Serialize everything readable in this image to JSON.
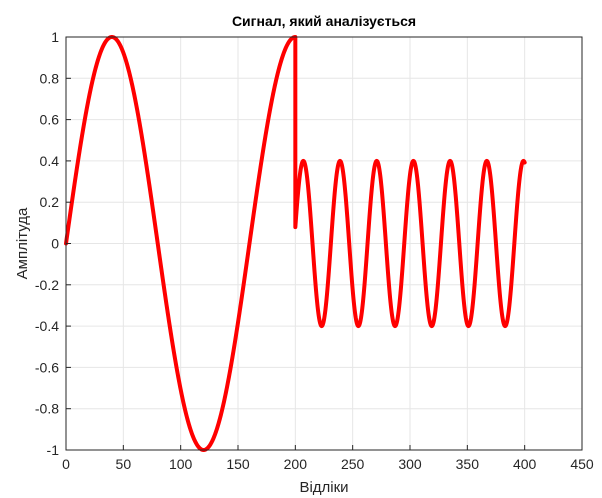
{
  "chart_data": {
    "type": "line",
    "title": "Сигнал, який аналізується",
    "xlabel": "Відліки",
    "ylabel": "Амплітуда",
    "xlim": [
      0,
      450
    ],
    "ylim": [
      -1,
      1
    ],
    "grid": true,
    "x_ticks": [
      "0",
      "50",
      "100",
      "150",
      "200",
      "250",
      "300",
      "350",
      "400",
      "450"
    ],
    "y_ticks": [
      "-1",
      "-0.8",
      "-0.6",
      "-0.4",
      "-0.2",
      "0",
      "0.2",
      "0.4",
      "0.6",
      "0.8",
      "1"
    ],
    "series": [
      {
        "color": "#ff0000",
        "segments": [
          {
            "x_start": 0,
            "x_end": 200,
            "amplitude": 1.0,
            "period": 160,
            "phase_at_start": 0
          },
          {
            "x_start": 200,
            "x_end": 400,
            "amplitude": 0.4,
            "period": 32,
            "phase_at_start": 0.2
          }
        ]
      }
    ]
  },
  "colors": {
    "line": "#ff0000",
    "grid": "#e6e6e6",
    "axes": "#262626"
  }
}
